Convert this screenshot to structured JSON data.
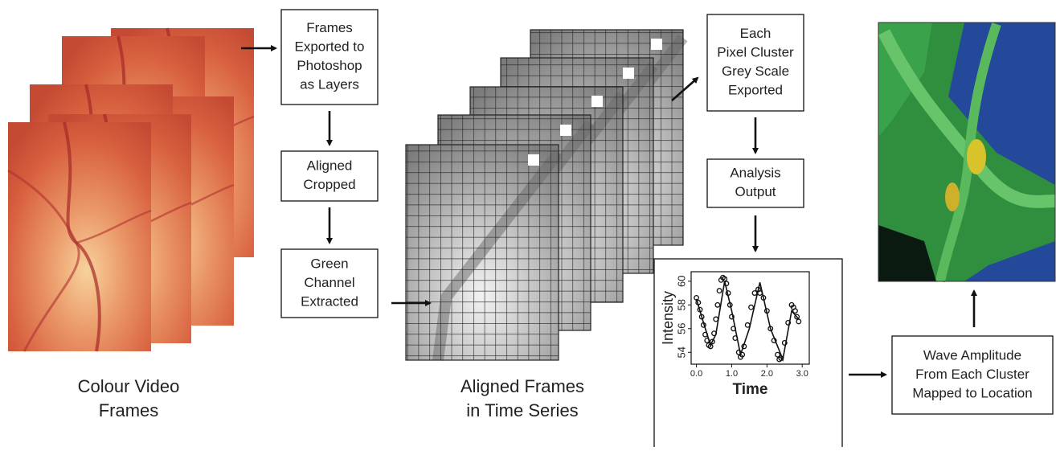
{
  "nodes": [
    {
      "lines": [
        "Frames",
        "Exported to",
        "Photoshop",
        "as Layers"
      ]
    },
    {
      "lines": [
        "Aligned",
        "Cropped"
      ]
    },
    {
      "lines": [
        "Green",
        "Channel",
        "Extracted"
      ]
    },
    {
      "lines": [
        "Each",
        "Pixel Cluster",
        "Grey Scale",
        "Exported"
      ]
    },
    {
      "lines": [
        "Analysis",
        "Output"
      ]
    },
    {
      "lines": [
        "Wave Amplitude",
        "From Each Cluster",
        "Mapped to Location"
      ]
    }
  ],
  "captions": [
    {
      "lines": [
        "Colour Video",
        "Frames"
      ]
    },
    {
      "lines": [
        "Aligned Frames",
        "in Time Series"
      ]
    }
  ],
  "chart_data": {
    "type": "scatter",
    "xlabel": "Time",
    "ylabel": "Intensity",
    "xlim": [
      -0.15,
      3.2
    ],
    "ylim": [
      53,
      60.8
    ],
    "xticks": [
      {
        "value": 0,
        "label": "0.0"
      },
      {
        "value": 1,
        "label": "1.0"
      },
      {
        "value": 2,
        "label": "2.0"
      },
      {
        "value": 3,
        "label": "3.0"
      }
    ],
    "yticks": [
      54,
      56,
      58,
      60
    ],
    "series": [
      {
        "mode": "markers",
        "color": "#111",
        "x": [
          0,
          0.05,
          0.1,
          0.15,
          0.2,
          0.25,
          0.3,
          0.35,
          0.4,
          0.45,
          0.5,
          0.55,
          0.6,
          0.65,
          0.7,
          0.75,
          0.8,
          0.85,
          0.9,
          0.95,
          1.0,
          1.05,
          1.1,
          1.2,
          1.25,
          1.3,
          1.35,
          1.45,
          1.55,
          1.65,
          1.75,
          1.8,
          1.9,
          2.0,
          2.1,
          2.2,
          2.3,
          2.35,
          2.4,
          2.5,
          2.6,
          2.7,
          2.75,
          2.8,
          2.85,
          2.9
        ],
        "values": [
          58.6,
          58.2,
          57.6,
          57.0,
          56.3,
          55.5,
          55.0,
          54.6,
          54.5,
          54.9,
          55.6,
          56.8,
          58.0,
          59.2,
          60.1,
          60.3,
          60.2,
          59.8,
          59.0,
          58.0,
          57.0,
          56.0,
          55.2,
          54.0,
          53.6,
          53.8,
          54.5,
          56.3,
          57.8,
          59.0,
          59.3,
          59.0,
          58.6,
          57.5,
          56.0,
          55.0,
          53.8,
          53.4,
          53.5,
          54.8,
          56.5,
          58.0,
          57.8,
          57.5,
          57.0,
          56.6
        ]
      },
      {
        "mode": "line",
        "color": "#111",
        "x": [
          0,
          0.2,
          0.4,
          0.55,
          0.8,
          1.0,
          1.25,
          1.5,
          1.8,
          2.1,
          2.45,
          2.7,
          2.9
        ],
        "values": [
          58.5,
          56.5,
          54.6,
          55.5,
          60.0,
          57.5,
          53.8,
          56.0,
          59.9,
          56.0,
          53.4,
          57.5,
          56.8
        ]
      }
    ]
  }
}
